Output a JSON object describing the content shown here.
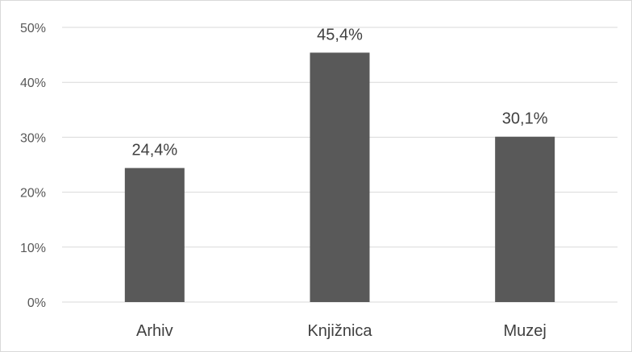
{
  "chart_data": {
    "type": "bar",
    "title": "",
    "xlabel": "",
    "ylabel": "",
    "categories": [
      "Arhiv",
      "Knjižnica",
      "Muzej"
    ],
    "values": [
      24.4,
      45.4,
      30.1
    ],
    "data_labels": [
      "24,4%",
      "45,4%",
      "30,1%"
    ],
    "ylim": [
      0,
      50
    ],
    "yticks": [
      0,
      10,
      20,
      30,
      40,
      50
    ],
    "ytick_labels": [
      "0%",
      "10%",
      "20%",
      "30%",
      "40%",
      "50%"
    ],
    "grid": true,
    "legend": "none",
    "bar_color": "#595959",
    "grid_color": "#d9d9d9"
  }
}
